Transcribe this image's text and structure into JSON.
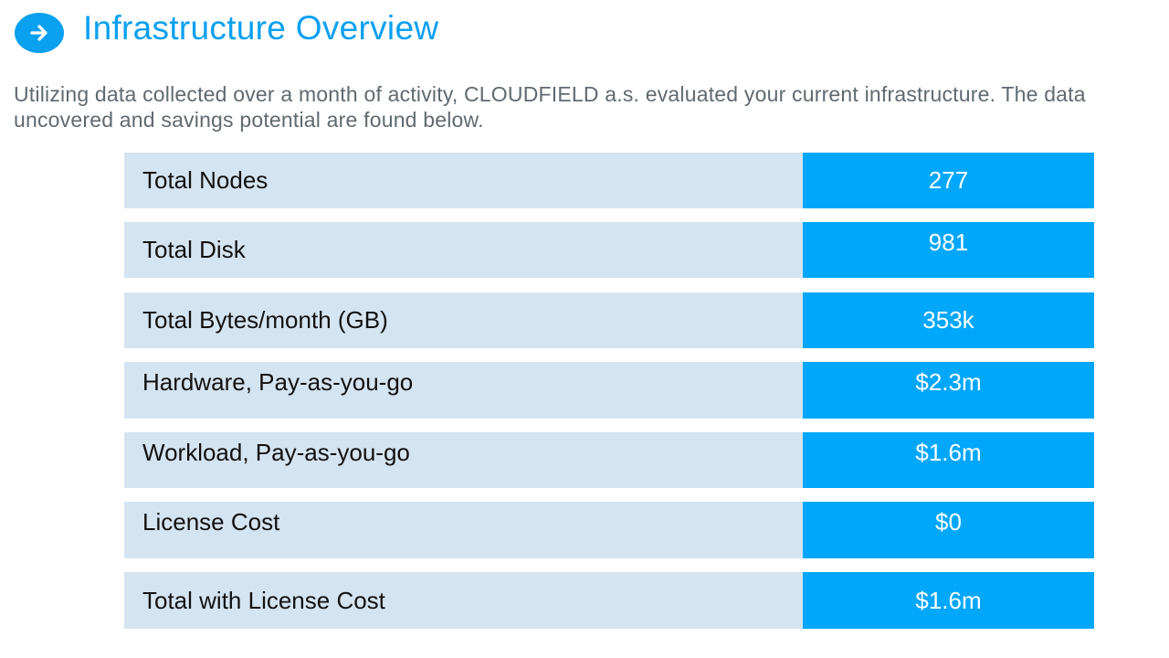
{
  "header": {
    "icon": "arrow-right-circle-icon",
    "title": "Infrastructure Overview"
  },
  "description": "Utilizing data collected over a month of activity, CLOUDFIELD a.s. evaluated your current infrastructure. The data uncovered and savings potential are found below.",
  "rows": [
    {
      "label": "Total Nodes",
      "value": "277"
    },
    {
      "label": "Total Disk",
      "value": "981"
    },
    {
      "label": "Total Bytes/month (GB)",
      "value": "353k"
    },
    {
      "label": "Hardware, Pay-as-you-go",
      "value": "$2.3m"
    },
    {
      "label": "Workload, Pay-as-you-go",
      "value": "$1.6m"
    },
    {
      "label": "License Cost",
      "value": "$0"
    },
    {
      "label": "Total with License Cost",
      "value": "$1.6m"
    }
  ],
  "colors": {
    "accent": "#0aa0f0",
    "value_bg": "#01a7fb",
    "label_bg": "#d5e4f1"
  }
}
